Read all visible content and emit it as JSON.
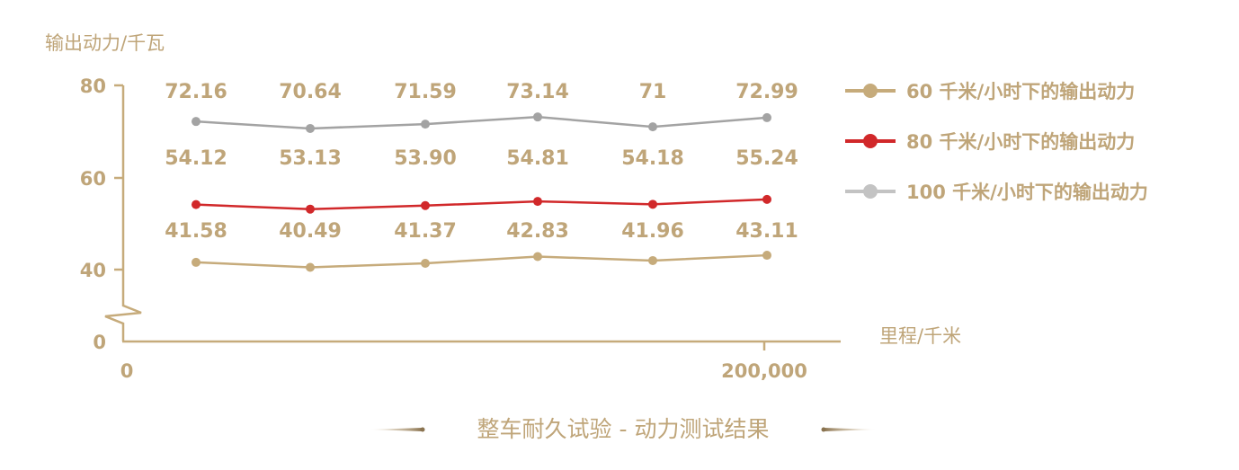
{
  "chart_data": {
    "type": "line",
    "title": "整车耐久试验 - 动力测试结果",
    "xlabel": "里程/千米",
    "ylabel": "输出动力/千瓦",
    "x_tick_labels": [
      "0",
      "200,000"
    ],
    "y_tick_labels": [
      "0",
      "40",
      "60",
      "80"
    ],
    "ylim": [
      40,
      80
    ],
    "axis_break": true,
    "grid": false,
    "legend_position": "right",
    "points_per_series": 6,
    "series": [
      {
        "name": "60 千米/小时下的输出动力",
        "color": "#c6ab7b",
        "values": [
          41.58,
          40.49,
          41.37,
          42.83,
          41.96,
          43.11
        ],
        "labels": [
          "41.58",
          "40.49",
          "41.37",
          "42.83",
          "41.96",
          "43.11"
        ]
      },
      {
        "name": "80 千米/小时下的输出动力",
        "color": "#d1282a",
        "values": [
          54.12,
          53.13,
          53.9,
          54.81,
          54.18,
          55.24
        ],
        "labels": [
          "54.12",
          "53.13",
          "53.90",
          "54.81",
          "54.18",
          "55.24"
        ]
      },
      {
        "name": "100 千米/小时下的输出动力",
        "color": "#a3a3a3",
        "legend_color": "#c3c3c3",
        "values": [
          72.16,
          70.64,
          71.59,
          73.14,
          71,
          72.99
        ],
        "labels": [
          "72.16",
          "70.64",
          "71.59",
          "73.14",
          "71",
          "72.99"
        ]
      }
    ],
    "label_color": "#bfa579",
    "axis_color": "#c6ab7b"
  }
}
